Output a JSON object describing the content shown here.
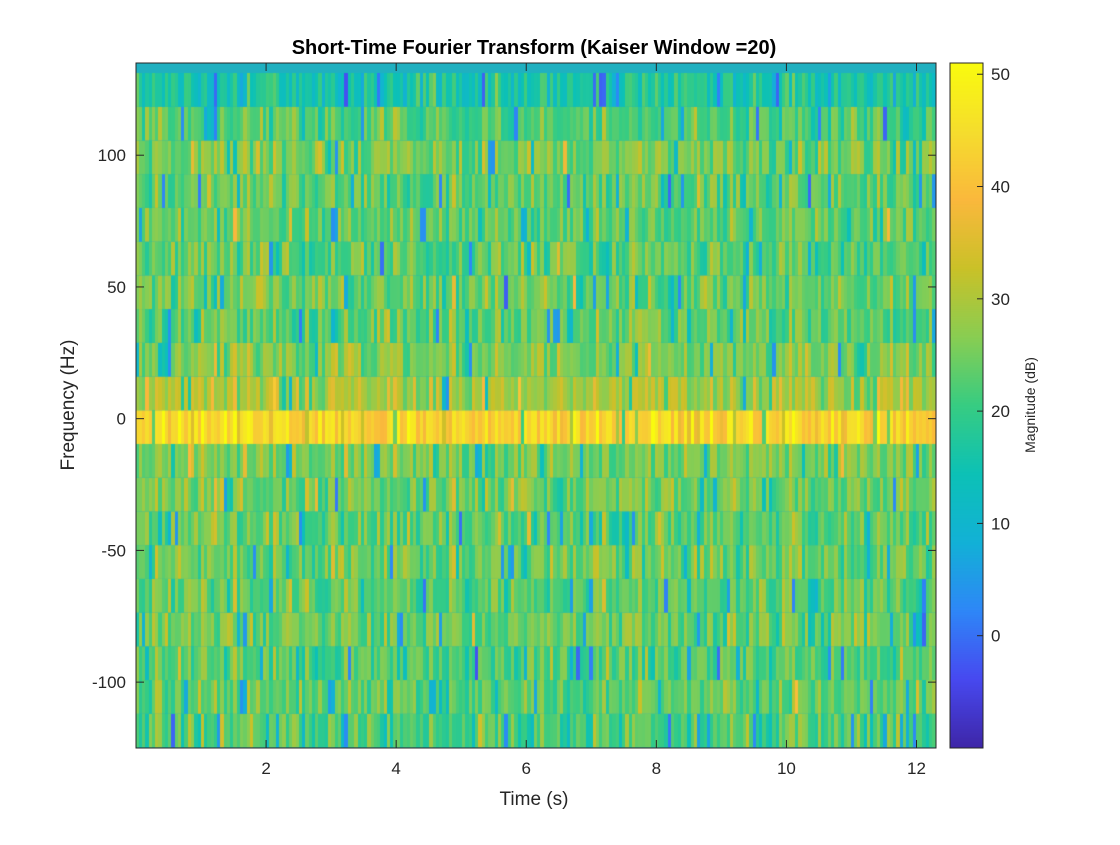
{
  "chart_data": {
    "type": "heatmap",
    "title": "Short-Time Fourier Transform (Kaiser Window =20)",
    "xlabel": "Time (s)",
    "ylabel": "Frequency (Hz)",
    "xlim": [
      0.0,
      12.3
    ],
    "ylim": [
      -125,
      135
    ],
    "xticks": [
      2,
      4,
      6,
      8,
      10,
      12
    ],
    "xtick_labels": [
      "2",
      "4",
      "6",
      "8",
      "10",
      "12"
    ],
    "yticks": [
      -100,
      -50,
      0,
      50,
      100
    ],
    "ytick_labels": [
      "-100",
      "-50",
      "0",
      "50",
      "100"
    ],
    "frequency_bins": {
      "count": 20,
      "spacing_hz": 12.8,
      "first_center_hz": -118.4,
      "last_center_hz": 124.8
    },
    "time_frames": 245,
    "band_mean_db": [
      22,
      24,
      22,
      24,
      23,
      24,
      23,
      25,
      26,
      43,
      29,
      26,
      23,
      24,
      23,
      24,
      23,
      25,
      22,
      16
    ],
    "strong_band": {
      "center_hz": 0,
      "range_hz": [
        -6.4,
        6.4
      ],
      "magnitude_db": [
        40,
        50
      ],
      "dropouts_at_s": [
        2.5,
        3.6,
        4.1,
        5.8,
        6.5,
        7.1,
        8.2,
        10.6,
        11.3
      ]
    },
    "colormap": "parula",
    "colorbar": {
      "label": "Magnitude (dB)",
      "clim": [
        -10,
        51
      ],
      "ticks": [
        0,
        10,
        20,
        30,
        40,
        50
      ],
      "tick_labels": [
        "0",
        "10",
        "20",
        "30",
        "40",
        "50"
      ]
    }
  }
}
